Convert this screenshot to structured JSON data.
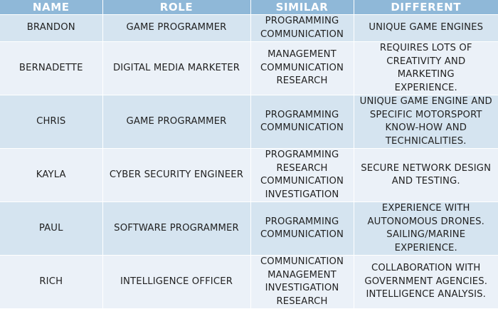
{
  "headers": {
    "name": "NAME",
    "role": "ROLE",
    "similar": "SIMILAR",
    "different": "DIFFERENT"
  },
  "rows": [
    {
      "name": "BRANDON",
      "role": "GAME PROGRAMMER",
      "similar": [
        "PROGRAMMING",
        "COMMUNICATION"
      ],
      "different": [
        "UNIQUE GAME ENGINES"
      ]
    },
    {
      "name": "BERNADETTE",
      "role": "DIGITAL MEDIA MARKETER",
      "similar": [
        "MANAGEMENT",
        "COMMUNICATION",
        "RESEARCH"
      ],
      "different": [
        "REQUIRES LOTS OF",
        "CREATIVITY AND MARKETING",
        "EXPERIENCE."
      ]
    },
    {
      "name": "CHRIS",
      "role": "GAME PROGRAMMER",
      "similar": [
        "PROGRAMMING",
        "COMMUNICATION"
      ],
      "different": [
        "UNIQUE GAME ENGINE AND",
        "SPECIFIC MOTORSPORT",
        "KNOW-HOW AND",
        "TECHNICALITIES."
      ]
    },
    {
      "name": "KAYLA",
      "role": "CYBER SECURITY ENGINEER",
      "similar": [
        "PROGRAMMING",
        "RESEARCH",
        "COMMUNICATION",
        "INVESTIGATION"
      ],
      "different": [
        "SECURE NETWORK DESIGN",
        "AND TESTING."
      ]
    },
    {
      "name": "PAUL",
      "role": "SOFTWARE PROGRAMMER",
      "similar": [
        "PROGRAMMING",
        "COMMUNICATION"
      ],
      "different": [
        "EXPERIENCE WITH",
        "AUTONOMOUS DRONES.",
        "SAILING/MARINE",
        "EXPERIENCE."
      ]
    },
    {
      "name": "RICH",
      "role": "INTELLIGENCE OFFICER",
      "similar": [
        "COMMUNICATION",
        "MANAGEMENT",
        "INVESTIGATION",
        "RESEARCH"
      ],
      "different": [
        "COLLABORATION WITH",
        "GOVERNMENT AGENCIES.",
        "INTELLIGENCE ANALYSIS."
      ]
    }
  ]
}
